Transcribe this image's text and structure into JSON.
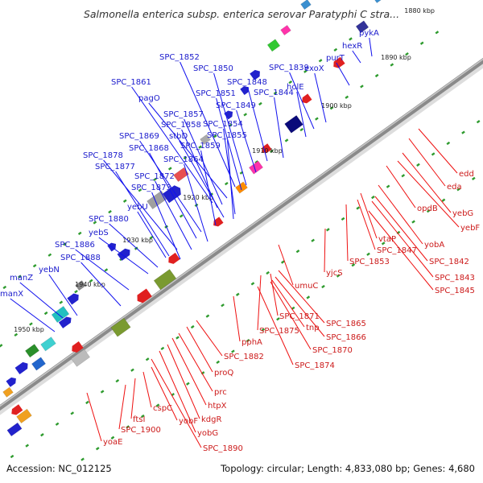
{
  "title": "Salmonella enterica subsp. enterica serovar Paratyphi C stra...",
  "footer": {
    "accession": "Accession: NC_012125",
    "topology": "Topology: circular; Length: 4,833,080 bp; Genes: 4,680"
  },
  "ticks": [
    "1880 kbp",
    "1890 kbp",
    "1900 kbp",
    "1910 kbp",
    "1920 kbp",
    "1930 kbp",
    "1940 kbp",
    "1950 kbp"
  ],
  "genes_top": [
    "pykA",
    "hexR",
    "purT",
    "exoX",
    "SPC_1839",
    "holE",
    "SPC_1844",
    "SPC_1848",
    "SPC_1849",
    "SPC_1850",
    "SPC_1851",
    "SPC_1852",
    "pagO",
    "SPC_1861",
    "SPC_1857",
    "SPC_1858",
    "SPC_1854",
    "SPC_1855",
    "stbD",
    "SPC_1859",
    "SPC_1869",
    "SPC_1868",
    "SPC_1864",
    "SPC_1878",
    "SPC_1877",
    "SPC_1872",
    "SPC_1873",
    "yebU",
    "SPC_1880",
    "yebS",
    "SPC_1886",
    "SPC_1888",
    "yebN",
    "manZ",
    "manX"
  ],
  "genes_bottom": [
    "edd",
    "eda",
    "yebG",
    "yebF",
    "opdB",
    "yobA",
    "SPC_1842",
    "SPC_1843",
    "SPC_1845",
    "vtaP",
    "SPC_1847",
    "SPC_1853",
    "yjcS",
    "umuC",
    "SPC_1865",
    "SPC_1866",
    "SPC_1870",
    "SPC_1871",
    "tnp",
    "SPC_1875",
    "SPC_1874",
    "pphA",
    "SPC_1882",
    "proQ",
    "prc",
    "htpX",
    "kdgR",
    "yobG",
    "SPC_1890",
    "yobF",
    "cspC",
    "ftsI",
    "SPC_1900",
    "yoaE"
  ]
}
